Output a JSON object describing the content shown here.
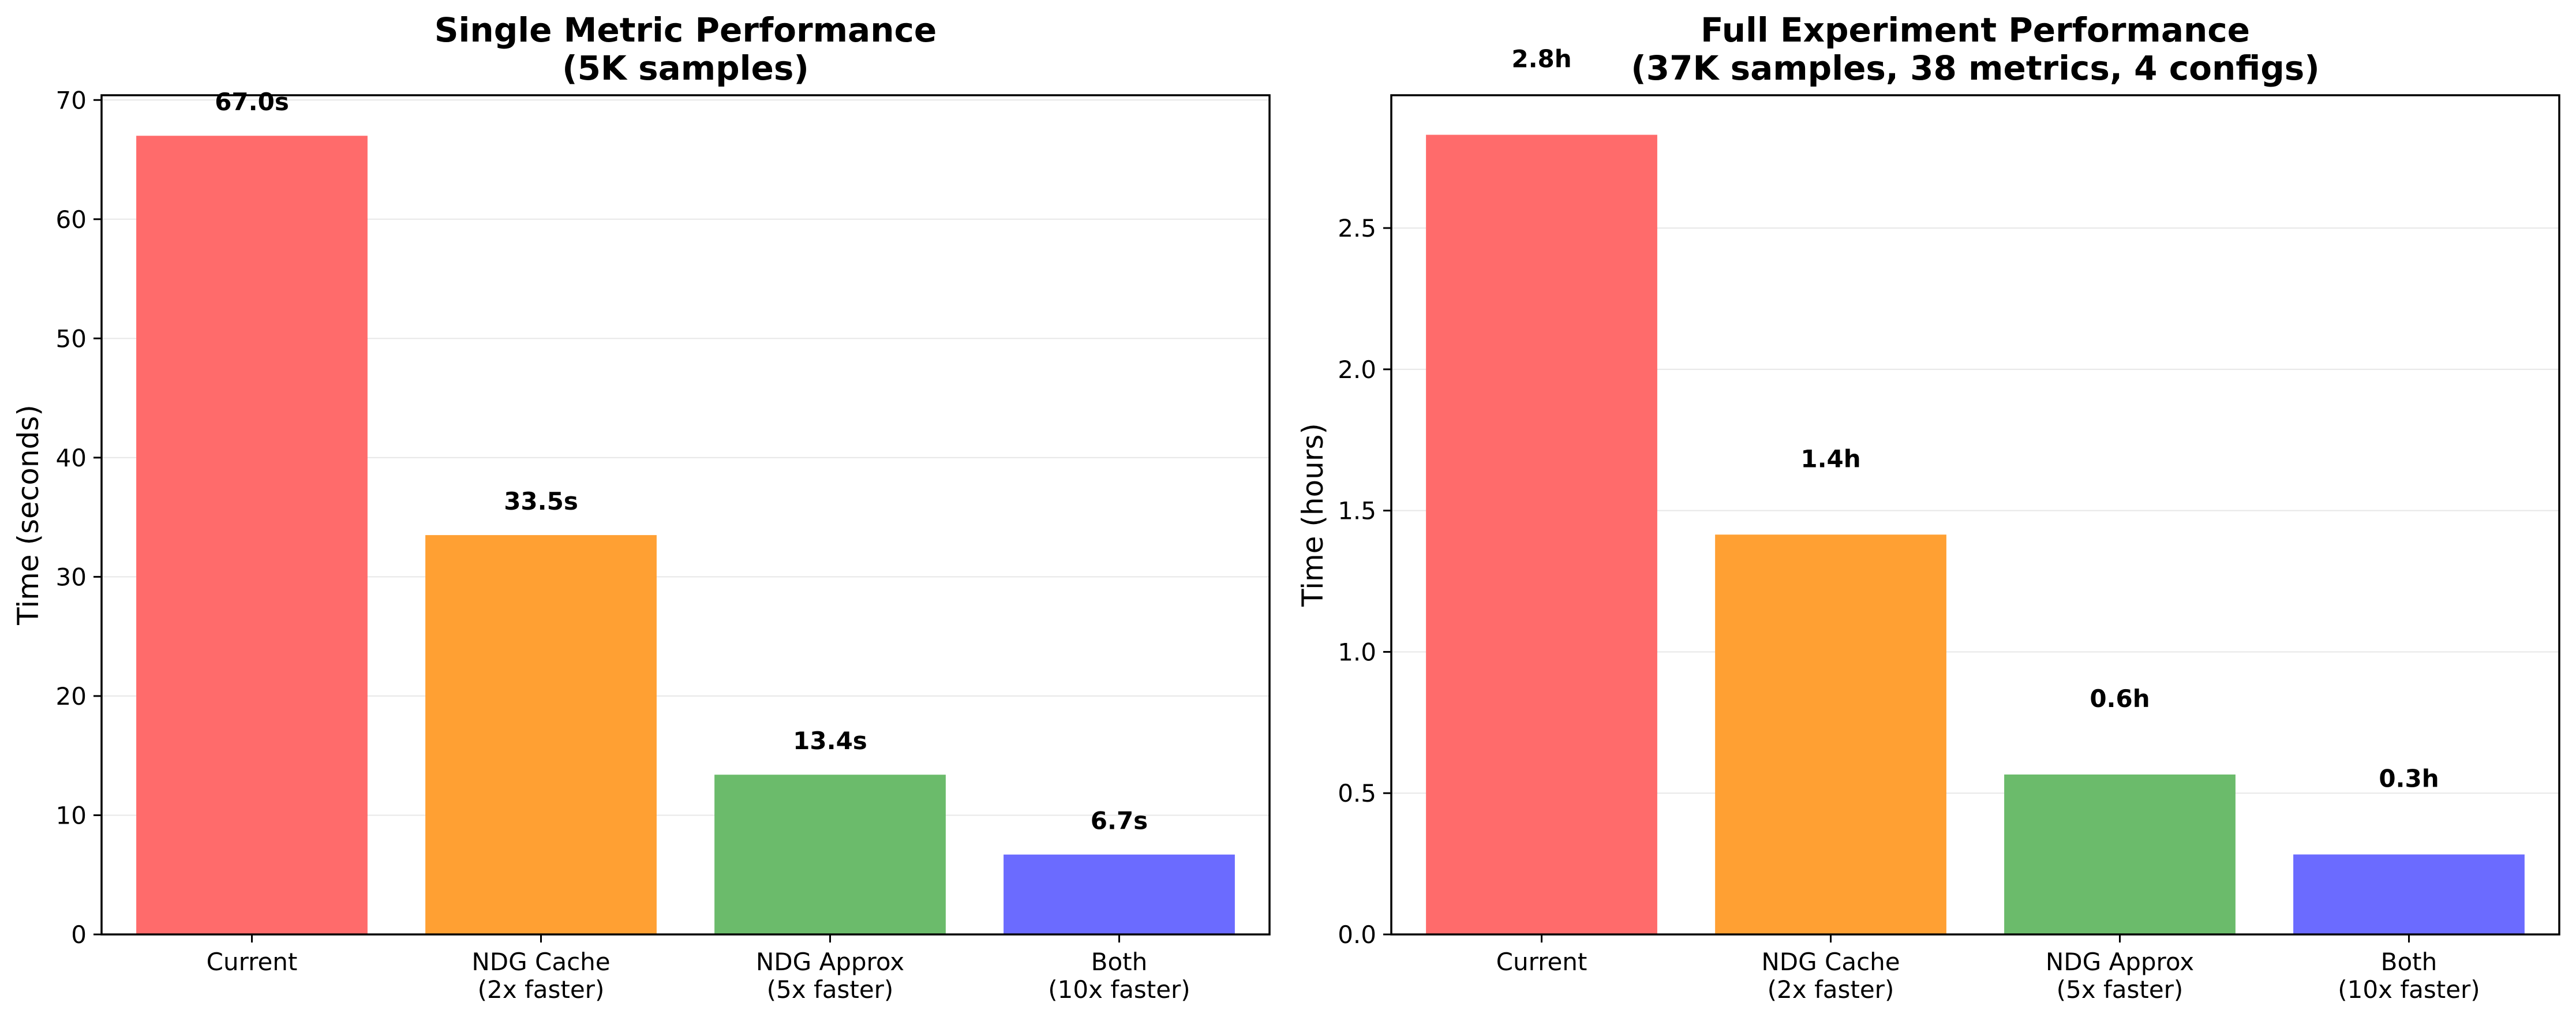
{
  "chart_data": [
    {
      "type": "bar",
      "title_lines": [
        "Single Metric Performance",
        "(5K samples)"
      ],
      "xlabel": "",
      "ylabel": "Time (seconds)",
      "categories": [
        [
          "Current"
        ],
        [
          "NDG Cache",
          "(2x faster)"
        ],
        [
          "NDG Approx",
          "(5x faster)"
        ],
        [
          "Both",
          "(10x faster)"
        ]
      ],
      "values": [
        67.0,
        33.5,
        13.4,
        6.7
      ],
      "data_labels": [
        "67.0s",
        "33.5s",
        "13.4s",
        "6.7s"
      ],
      "colors": [
        "#ff6b6b",
        "#ffa033",
        "#6bbb6b",
        "#6b6bff"
      ],
      "ylim": [
        0,
        70.4
      ],
      "yticks": [
        0,
        10,
        20,
        30,
        40,
        50,
        60,
        70
      ],
      "ytick_labels": [
        "0",
        "10",
        "20",
        "30",
        "40",
        "50",
        "60",
        "70"
      ],
      "grid": "y"
    },
    {
      "type": "bar",
      "title_lines": [
        "Full Experiment Performance",
        "(37K samples, 38 metrics, 4 configs)"
      ],
      "xlabel": "",
      "ylabel": "Time (hours)",
      "categories": [
        [
          "Current"
        ],
        [
          "NDG Cache",
          "(2x faster)"
        ],
        [
          "NDG Approx",
          "(5x faster)"
        ],
        [
          "Both",
          "(10x faster)"
        ]
      ],
      "values": [
        2.83,
        1.415,
        0.566,
        0.283
      ],
      "data_labels": [
        "2.8h",
        "1.4h",
        "0.6h",
        "0.3h"
      ],
      "colors": [
        "#ff6b6b",
        "#ffa033",
        "#6bbb6b",
        "#6b6bff"
      ],
      "ylim": [
        0,
        2.97
      ],
      "yticks": [
        0,
        0.5,
        1.0,
        1.5,
        2.0,
        2.5
      ],
      "ytick_labels": [
        "0.0",
        "0.5",
        "1.0",
        "1.5",
        "2.0",
        "2.5"
      ],
      "grid": "y"
    }
  ]
}
